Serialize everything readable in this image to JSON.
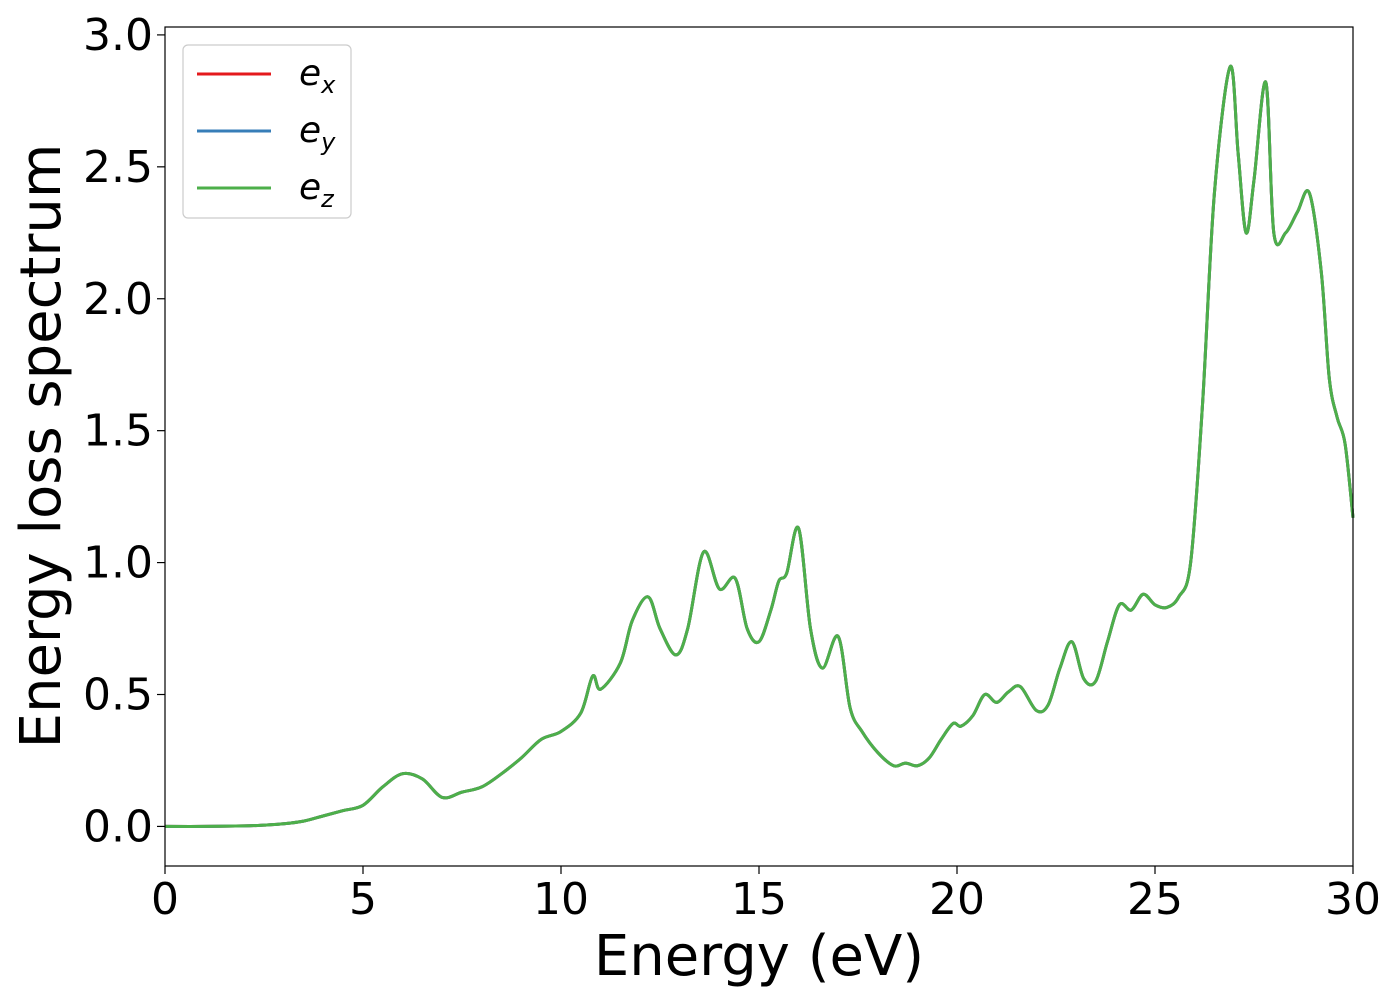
{
  "chart_data": {
    "type": "line",
    "title": "",
    "xlabel": "Energy (eV)",
    "ylabel": "Energy loss spectrum",
    "xlim": [
      0,
      30
    ],
    "ylim": [
      -0.15,
      3.03
    ],
    "xticks": [
      0,
      5,
      10,
      15,
      20,
      25,
      30
    ],
    "xtick_labels": [
      "0",
      "5",
      "10",
      "15",
      "20",
      "25",
      "30"
    ],
    "yticks": [
      0.0,
      0.5,
      1.0,
      1.5,
      2.0,
      2.5,
      3.0
    ],
    "ytick_labels": [
      "0.0",
      "0.5",
      "1.0",
      "1.5",
      "2.0",
      "2.5",
      "3.0"
    ],
    "grid": false,
    "legend_position": "top-left",
    "legend": [
      {
        "base": "e",
        "sub": "x",
        "color": "#e41a1c"
      },
      {
        "base": "e",
        "sub": "y",
        "color": "#377eb8"
      },
      {
        "base": "e",
        "sub": "z",
        "color": "#4daf4a"
      }
    ],
    "x": [
      0,
      1,
      2,
      2.5,
      3,
      3.5,
      4,
      4.5,
      5,
      5.5,
      6,
      6.5,
      7,
      7.5,
      8,
      8.5,
      9,
      9.5,
      10,
      10.5,
      10.8,
      11,
      11.5,
      11.8,
      12.2,
      12.5,
      12.9,
      13.2,
      13.6,
      14,
      14.4,
      14.7,
      15,
      15.3,
      15.5,
      15.7,
      16,
      16.3,
      16.6,
      17,
      17.3,
      17.6,
      18,
      18.4,
      18.7,
      19,
      19.3,
      19.6,
      19.9,
      20.1,
      20.4,
      20.7,
      21,
      21.3,
      21.6,
      22,
      22.3,
      22.6,
      22.9,
      23.2,
      23.5,
      23.8,
      24.1,
      24.4,
      24.7,
      25,
      25.3,
      25.6,
      25.9,
      26.2,
      26.5,
      26.9,
      27.1,
      27.3,
      27.5,
      27.8,
      28,
      28.3,
      28.6,
      28.9,
      29.2,
      29.4,
      29.6,
      29.8,
      30
    ],
    "series": [
      {
        "name": "",
        "values": [
          0,
          0,
          0.002,
          0.005,
          0.01,
          0.02,
          0.04,
          0.06,
          0.08,
          0.15,
          0.2,
          0.18,
          0.11,
          0.13,
          0.15,
          0.2,
          0.26,
          0.33,
          0.36,
          0.43,
          0.57,
          0.52,
          0.62,
          0.78,
          0.87,
          0.75,
          0.65,
          0.75,
          1.04,
          0.9,
          0.94,
          0.75,
          0.7,
          0.82,
          0.93,
          0.96,
          1.13,
          0.75,
          0.6,
          0.72,
          0.45,
          0.36,
          0.28,
          0.23,
          0.24,
          0.23,
          0.26,
          0.33,
          0.39,
          0.38,
          0.42,
          0.5,
          0.47,
          0.51,
          0.53,
          0.44,
          0.46,
          0.6,
          0.7,
          0.56,
          0.55,
          0.7,
          0.84,
          0.82,
          0.88,
          0.84,
          0.83,
          0.87,
          1.0,
          1.6,
          2.4,
          2.88,
          2.55,
          2.25,
          2.45,
          2.82,
          2.25,
          2.25,
          2.33,
          2.4,
          2.1,
          1.7,
          1.55,
          1.45,
          1.17
        ]
      }
    ]
  }
}
